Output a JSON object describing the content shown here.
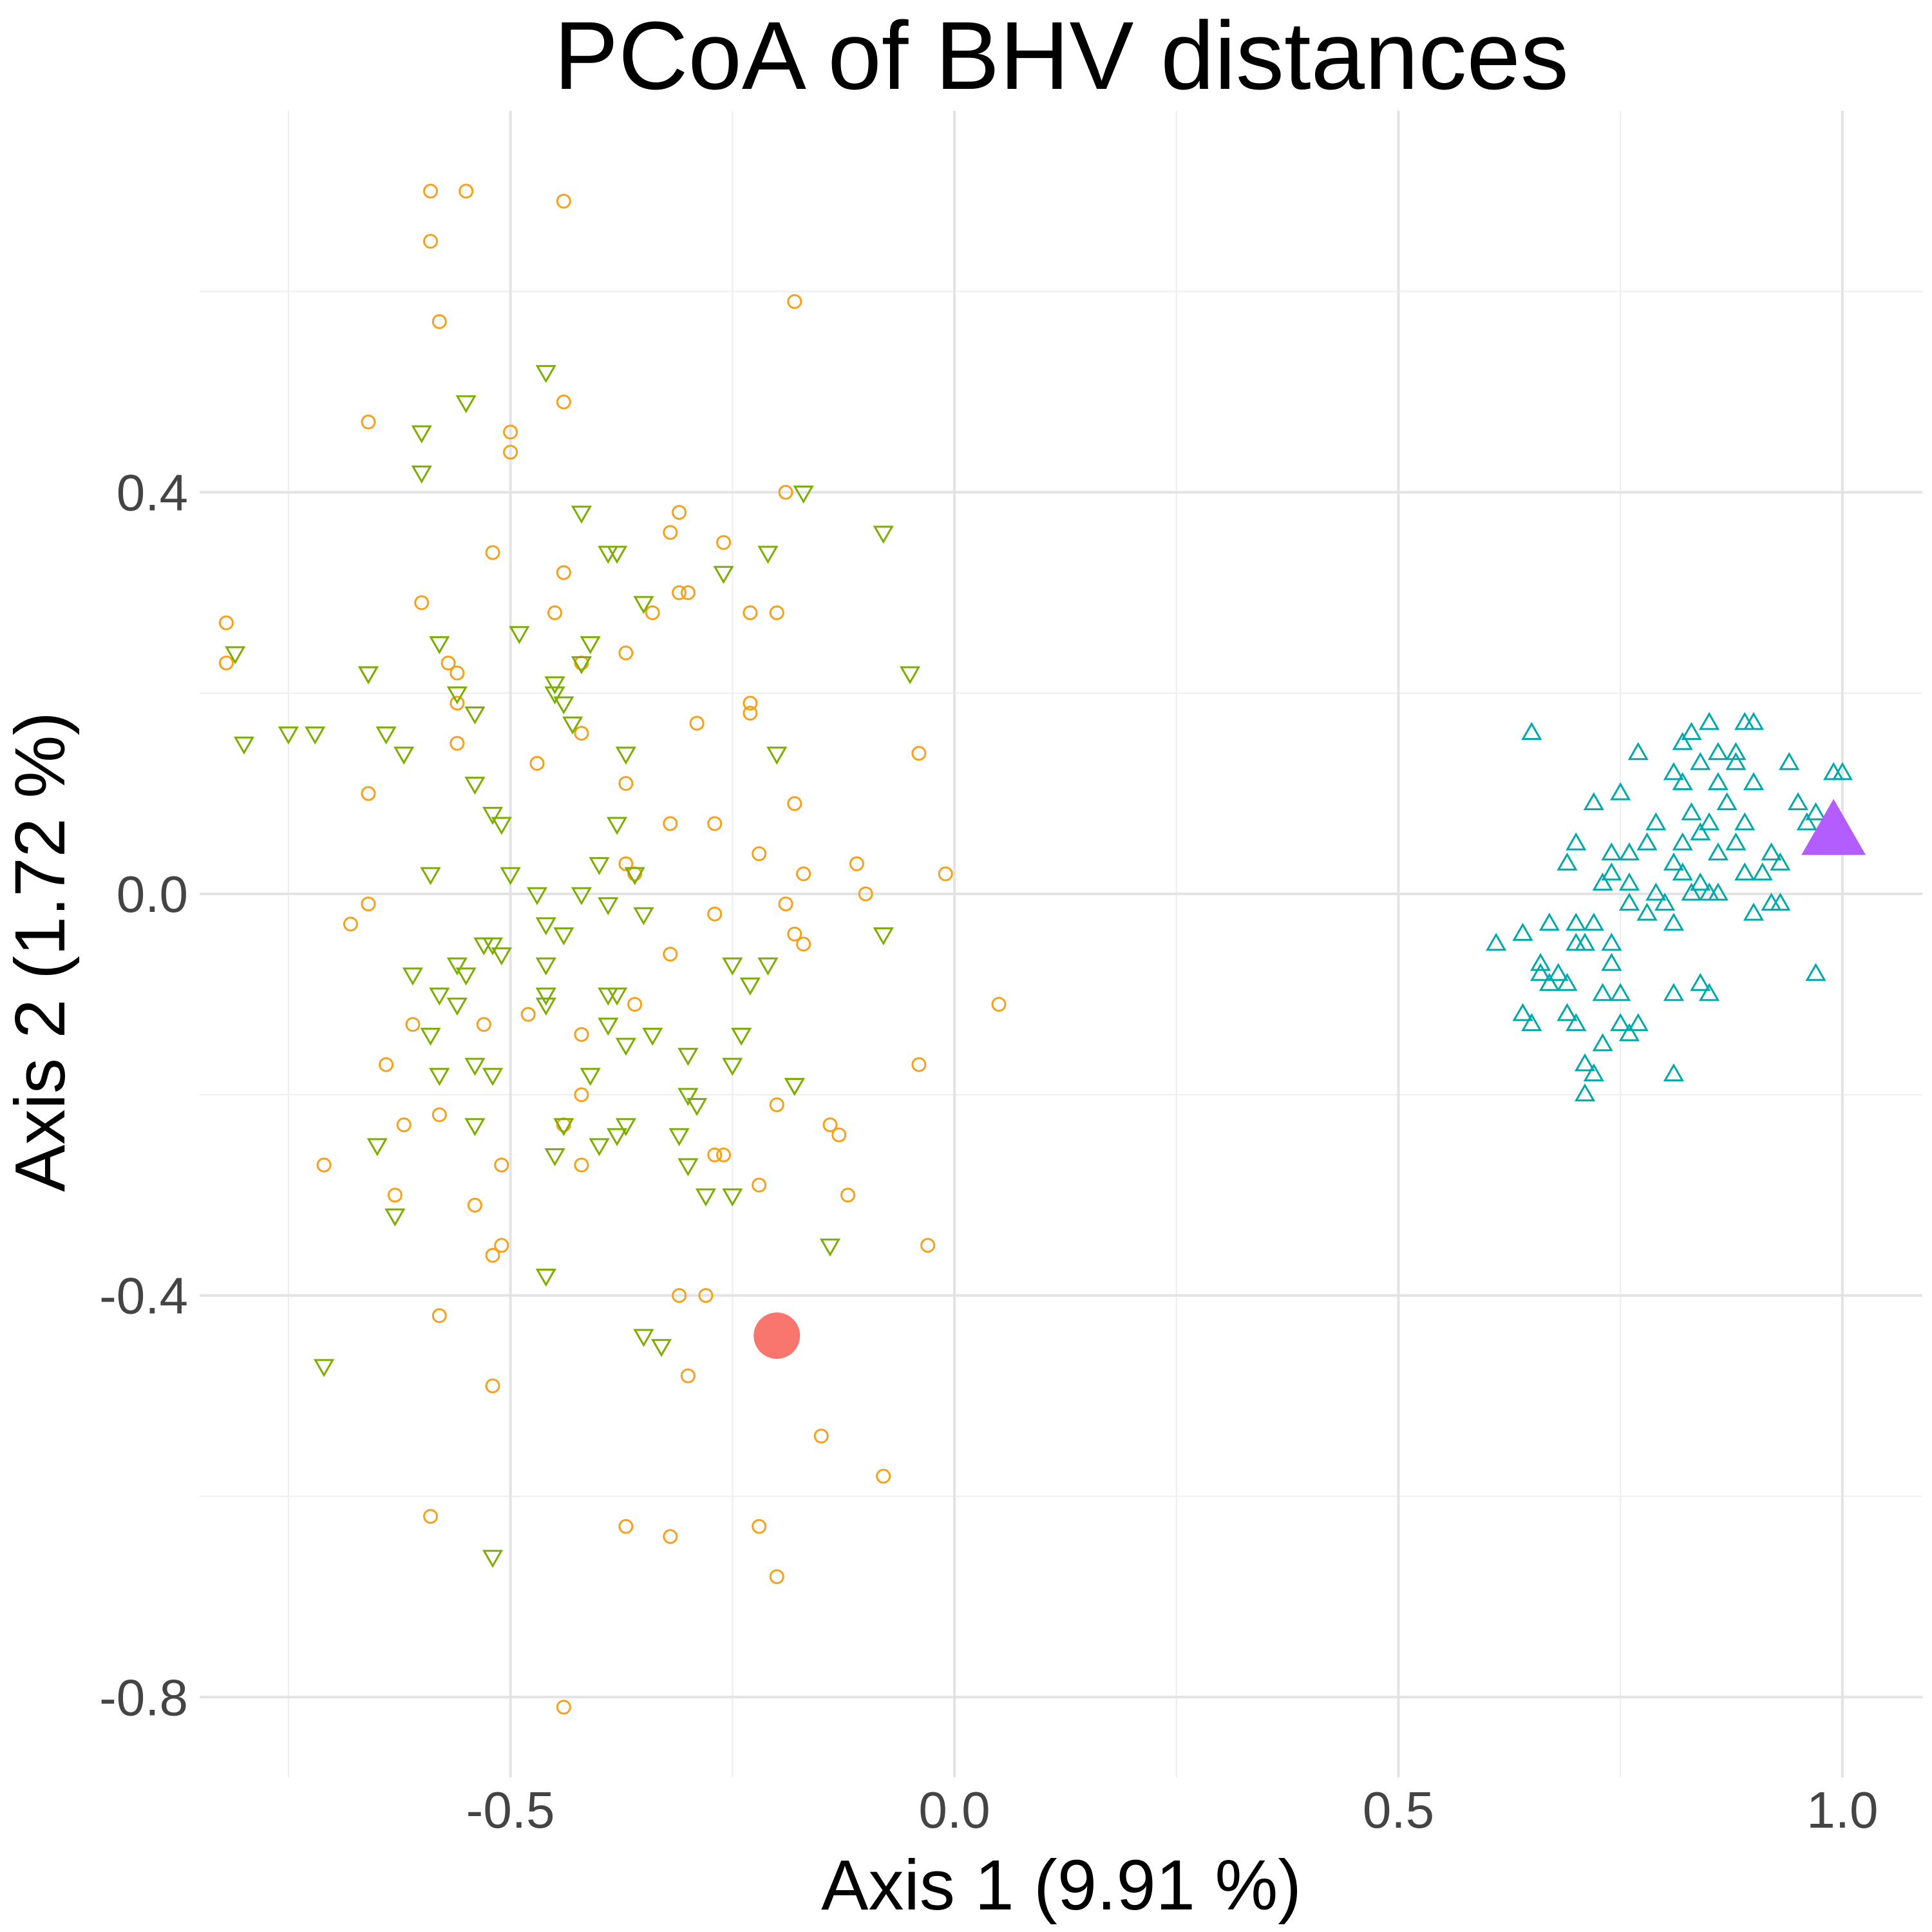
{
  "chart_data": {
    "type": "scatter",
    "title": "PCoA of BHV distances",
    "xlabel": "Axis 1 (9.91 %)",
    "ylabel": "Axis 2 (1.72 %)",
    "xlim": [
      -0.85,
      1.09
    ],
    "ylim": [
      -0.88,
      0.78
    ],
    "x_ticks": [
      -0.5,
      0.0,
      0.5,
      1.0
    ],
    "x_tick_labels": [
      "-0.5",
      "0.0",
      "0.5",
      "1.0"
    ],
    "x_minor": [
      -0.75,
      -0.25,
      0.25,
      0.75
    ],
    "y_ticks": [
      0.4,
      0.0,
      -0.4,
      -0.8
    ],
    "y_tick_labels": [
      "0.4",
      "0.0",
      "-0.4",
      "-0.8"
    ],
    "y_minor": [
      0.6,
      0.2,
      -0.2,
      -0.6
    ],
    "grid": true,
    "legend": "none",
    "series": [
      {
        "marker": "circle-open",
        "color": "#F8A01A",
        "points": [
          [
            -0.59,
            0.7
          ],
          [
            -0.55,
            0.7
          ],
          [
            -0.44,
            0.69
          ],
          [
            -0.59,
            0.65
          ],
          [
            -0.18,
            0.59
          ],
          [
            -0.58,
            0.57
          ],
          [
            -0.66,
            0.47
          ],
          [
            -0.44,
            0.49
          ],
          [
            -0.5,
            0.46
          ],
          [
            -0.5,
            0.44
          ],
          [
            -0.19,
            0.4
          ],
          [
            -0.52,
            0.34
          ],
          [
            -0.6,
            0.29
          ],
          [
            -0.31,
            0.38
          ],
          [
            -0.32,
            0.36
          ],
          [
            -0.26,
            0.35
          ],
          [
            -0.44,
            0.32
          ],
          [
            -0.31,
            0.3
          ],
          [
            -0.3,
            0.3
          ],
          [
            -0.45,
            0.28
          ],
          [
            -0.34,
            0.28
          ],
          [
            -0.23,
            0.28
          ],
          [
            -0.2,
            0.28
          ],
          [
            -0.82,
            0.27
          ],
          [
            -0.82,
            0.23
          ],
          [
            -0.57,
            0.23
          ],
          [
            -0.42,
            0.23
          ],
          [
            -0.56,
            0.22
          ],
          [
            -0.37,
            0.24
          ],
          [
            -0.23,
            0.19
          ],
          [
            -0.56,
            0.19
          ],
          [
            -0.23,
            0.18
          ],
          [
            -0.29,
            0.17
          ],
          [
            -0.42,
            0.16
          ],
          [
            -0.56,
            0.15
          ],
          [
            -0.04,
            0.14
          ],
          [
            -0.47,
            0.13
          ],
          [
            -0.37,
            0.11
          ],
          [
            -0.66,
            0.1
          ],
          [
            -0.18,
            0.09
          ],
          [
            -0.32,
            0.07
          ],
          [
            -0.27,
            0.07
          ],
          [
            -0.22,
            0.04
          ],
          [
            -0.37,
            0.03
          ],
          [
            -0.36,
            0.02
          ],
          [
            -0.11,
            0.03
          ],
          [
            -0.17,
            0.02
          ],
          [
            -0.01,
            0.02
          ],
          [
            -0.1,
            0.0
          ],
          [
            -0.19,
            -0.01
          ],
          [
            -0.66,
            -0.01
          ],
          [
            -0.68,
            -0.03
          ],
          [
            -0.27,
            -0.02
          ],
          [
            -0.18,
            -0.04
          ],
          [
            -0.17,
            -0.05
          ],
          [
            -0.32,
            -0.06
          ],
          [
            -0.36,
            -0.11
          ],
          [
            0.05,
            -0.11
          ],
          [
            -0.48,
            -0.12
          ],
          [
            -0.61,
            -0.13
          ],
          [
            -0.53,
            -0.13
          ],
          [
            -0.42,
            -0.14
          ],
          [
            -0.64,
            -0.17
          ],
          [
            -0.04,
            -0.17
          ],
          [
            -0.42,
            -0.2
          ],
          [
            -0.2,
            -0.21
          ],
          [
            -0.62,
            -0.23
          ],
          [
            -0.58,
            -0.22
          ],
          [
            -0.44,
            -0.23
          ],
          [
            -0.14,
            -0.23
          ],
          [
            -0.13,
            -0.24
          ],
          [
            -0.26,
            -0.26
          ],
          [
            -0.27,
            -0.26
          ],
          [
            -0.71,
            -0.27
          ],
          [
            -0.42,
            -0.27
          ],
          [
            -0.51,
            -0.27
          ],
          [
            -0.22,
            -0.29
          ],
          [
            -0.12,
            -0.3
          ],
          [
            -0.63,
            -0.3
          ],
          [
            -0.54,
            -0.31
          ],
          [
            -0.51,
            -0.35
          ],
          [
            -0.03,
            -0.35
          ],
          [
            -0.52,
            -0.36
          ],
          [
            -0.31,
            -0.4
          ],
          [
            -0.28,
            -0.4
          ],
          [
            -0.58,
            -0.42
          ],
          [
            -0.3,
            -0.48
          ],
          [
            -0.52,
            -0.49
          ],
          [
            -0.15,
            -0.54
          ],
          [
            -0.08,
            -0.58
          ],
          [
            -0.59,
            -0.62
          ],
          [
            -0.37,
            -0.63
          ],
          [
            -0.32,
            -0.64
          ],
          [
            -0.22,
            -0.63
          ],
          [
            -0.2,
            -0.68
          ],
          [
            -0.44,
            -0.81
          ]
        ]
      },
      {
        "marker": "triangle-down-open",
        "color": "#7CAE00",
        "points": [
          [
            -0.46,
            0.52
          ],
          [
            -0.55,
            0.49
          ],
          [
            -0.6,
            0.46
          ],
          [
            -0.6,
            0.42
          ],
          [
            -0.42,
            0.38
          ],
          [
            -0.17,
            0.4
          ],
          [
            -0.08,
            0.36
          ],
          [
            -0.39,
            0.34
          ],
          [
            -0.38,
            0.34
          ],
          [
            -0.21,
            0.34
          ],
          [
            -0.26,
            0.32
          ],
          [
            -0.35,
            0.29
          ],
          [
            -0.49,
            0.26
          ],
          [
            -0.58,
            0.25
          ],
          [
            -0.41,
            0.25
          ],
          [
            -0.81,
            0.24
          ],
          [
            -0.42,
            0.23
          ],
          [
            -0.66,
            0.22
          ],
          [
            -0.66,
            0.22
          ],
          [
            -0.05,
            0.22
          ],
          [
            -0.45,
            0.21
          ],
          [
            -0.45,
            0.2
          ],
          [
            -0.56,
            0.2
          ],
          [
            -0.44,
            0.19
          ],
          [
            -0.54,
            0.18
          ],
          [
            -0.43,
            0.17
          ],
          [
            -0.72,
            0.16
          ],
          [
            -0.75,
            0.16
          ],
          [
            -0.64,
            0.16
          ],
          [
            -0.8,
            0.15
          ],
          [
            -0.62,
            0.14
          ],
          [
            -0.37,
            0.14
          ],
          [
            -0.2,
            0.14
          ],
          [
            -0.54,
            0.11
          ],
          [
            -0.52,
            0.08
          ],
          [
            -0.51,
            0.07
          ],
          [
            -0.38,
            0.07
          ],
          [
            -0.4,
            0.03
          ],
          [
            -0.59,
            0.02
          ],
          [
            -0.5,
            0.02
          ],
          [
            -0.36,
            0.02
          ],
          [
            -0.47,
            0.0
          ],
          [
            -0.42,
            0.0
          ],
          [
            -0.39,
            -0.01
          ],
          [
            -0.35,
            -0.02
          ],
          [
            -0.46,
            -0.03
          ],
          [
            -0.44,
            -0.04
          ],
          [
            -0.08,
            -0.04
          ],
          [
            -0.53,
            -0.05
          ],
          [
            -0.52,
            -0.05
          ],
          [
            -0.51,
            -0.06
          ],
          [
            -0.46,
            -0.07
          ],
          [
            -0.56,
            -0.07
          ],
          [
            -0.55,
            -0.08
          ],
          [
            -0.25,
            -0.07
          ],
          [
            -0.21,
            -0.07
          ],
          [
            -0.61,
            -0.08
          ],
          [
            -0.23,
            -0.09
          ],
          [
            -0.58,
            -0.1
          ],
          [
            -0.46,
            -0.1
          ],
          [
            -0.39,
            -0.1
          ],
          [
            -0.38,
            -0.1
          ],
          [
            -0.56,
            -0.11
          ],
          [
            -0.46,
            -0.11
          ],
          [
            -0.39,
            -0.13
          ],
          [
            -0.34,
            -0.14
          ],
          [
            -0.59,
            -0.14
          ],
          [
            -0.24,
            -0.14
          ],
          [
            -0.37,
            -0.15
          ],
          [
            -0.3,
            -0.16
          ],
          [
            -0.54,
            -0.17
          ],
          [
            -0.25,
            -0.17
          ],
          [
            -0.58,
            -0.18
          ],
          [
            -0.52,
            -0.18
          ],
          [
            -0.41,
            -0.18
          ],
          [
            -0.18,
            -0.19
          ],
          [
            -0.18,
            -0.19
          ],
          [
            -0.3,
            -0.2
          ],
          [
            -0.29,
            -0.21
          ],
          [
            -0.54,
            -0.23
          ],
          [
            -0.44,
            -0.23
          ],
          [
            -0.37,
            -0.23
          ],
          [
            -0.31,
            -0.24
          ],
          [
            -0.65,
            -0.25
          ],
          [
            -0.38,
            -0.24
          ],
          [
            -0.4,
            -0.25
          ],
          [
            -0.45,
            -0.26
          ],
          [
            -0.3,
            -0.27
          ],
          [
            -0.28,
            -0.3
          ],
          [
            -0.25,
            -0.3
          ],
          [
            -0.63,
            -0.32
          ],
          [
            -0.14,
            -0.35
          ],
          [
            -0.46,
            -0.38
          ],
          [
            -0.35,
            -0.44
          ],
          [
            -0.33,
            -0.45
          ],
          [
            -0.71,
            -0.47
          ],
          [
            -0.52,
            -0.66
          ]
        ]
      },
      {
        "marker": "triangle-up-open",
        "color": "#00A9A9",
        "points": [
          [
            0.65,
            0.16
          ],
          [
            0.83,
            0.16
          ],
          [
            0.85,
            0.17
          ],
          [
            0.89,
            0.17
          ],
          [
            0.9,
            0.17
          ],
          [
            0.82,
            0.15
          ],
          [
            0.86,
            0.14
          ],
          [
            0.88,
            0.14
          ],
          [
            0.77,
            0.14
          ],
          [
            0.88,
            0.13
          ],
          [
            0.94,
            0.13
          ],
          [
            0.99,
            0.12
          ],
          [
            1.0,
            0.12
          ],
          [
            0.84,
            0.13
          ],
          [
            0.81,
            0.12
          ],
          [
            0.82,
            0.11
          ],
          [
            0.86,
            0.11
          ],
          [
            0.9,
            0.11
          ],
          [
            0.75,
            0.1
          ],
          [
            0.72,
            0.09
          ],
          [
            0.87,
            0.09
          ],
          [
            0.95,
            0.09
          ],
          [
            0.97,
            0.08
          ],
          [
            0.83,
            0.08
          ],
          [
            0.89,
            0.07
          ],
          [
            0.85,
            0.07
          ],
          [
            0.79,
            0.07
          ],
          [
            0.96,
            0.07
          ],
          [
            0.7,
            0.05
          ],
          [
            0.78,
            0.05
          ],
          [
            0.84,
            0.06
          ],
          [
            0.88,
            0.05
          ],
          [
            0.82,
            0.05
          ],
          [
            0.74,
            0.04
          ],
          [
            0.76,
            0.04
          ],
          [
            0.86,
            0.04
          ],
          [
            0.92,
            0.04
          ],
          [
            0.93,
            0.03
          ],
          [
            0.69,
            0.03
          ],
          [
            0.81,
            0.03
          ],
          [
            0.91,
            0.02
          ],
          [
            0.89,
            0.02
          ],
          [
            0.74,
            0.02
          ],
          [
            0.82,
            0.02
          ],
          [
            0.84,
            0.01
          ],
          [
            0.73,
            0.01
          ],
          [
            0.79,
            0.0
          ],
          [
            0.76,
            0.01
          ],
          [
            0.83,
            0.0
          ],
          [
            0.85,
            0.0
          ],
          [
            0.86,
            0.0
          ],
          [
            0.92,
            -0.01
          ],
          [
            0.9,
            -0.02
          ],
          [
            0.76,
            -0.01
          ],
          [
            0.78,
            -0.02
          ],
          [
            0.67,
            -0.03
          ],
          [
            0.7,
            -0.03
          ],
          [
            0.72,
            -0.03
          ],
          [
            0.81,
            -0.03
          ],
          [
            0.64,
            -0.04
          ],
          [
            0.61,
            -0.05
          ],
          [
            0.7,
            -0.05
          ],
          [
            0.74,
            -0.05
          ],
          [
            0.71,
            -0.05
          ],
          [
            0.66,
            -0.07
          ],
          [
            0.74,
            -0.07
          ],
          [
            0.66,
            -0.08
          ],
          [
            0.68,
            -0.08
          ],
          [
            0.97,
            -0.08
          ],
          [
            0.67,
            -0.09
          ],
          [
            0.69,
            -0.09
          ],
          [
            0.84,
            -0.09
          ],
          [
            0.73,
            -0.1
          ],
          [
            0.75,
            -0.1
          ],
          [
            0.81,
            -0.1
          ],
          [
            0.64,
            -0.12
          ],
          [
            0.69,
            -0.12
          ],
          [
            0.65,
            -0.13
          ],
          [
            0.7,
            -0.13
          ],
          [
            0.75,
            -0.13
          ],
          [
            0.77,
            -0.13
          ],
          [
            0.76,
            -0.14
          ],
          [
            0.73,
            -0.15
          ],
          [
            0.71,
            -0.17
          ],
          [
            0.72,
            -0.18
          ],
          [
            0.81,
            -0.18
          ],
          [
            0.71,
            -0.2
          ],
          [
            0.85,
            -0.1
          ],
          [
            0.93,
            -0.01
          ],
          [
            0.8,
            -0.01
          ]
        ]
      },
      {
        "marker": "circle-filled-large",
        "color": "#F8766D",
        "points": [
          [
            -0.2,
            -0.44
          ]
        ]
      },
      {
        "marker": "triangle-up-filled-large",
        "color": "#B35CFF",
        "points": [
          [
            0.99,
            0.06
          ]
        ]
      }
    ]
  }
}
